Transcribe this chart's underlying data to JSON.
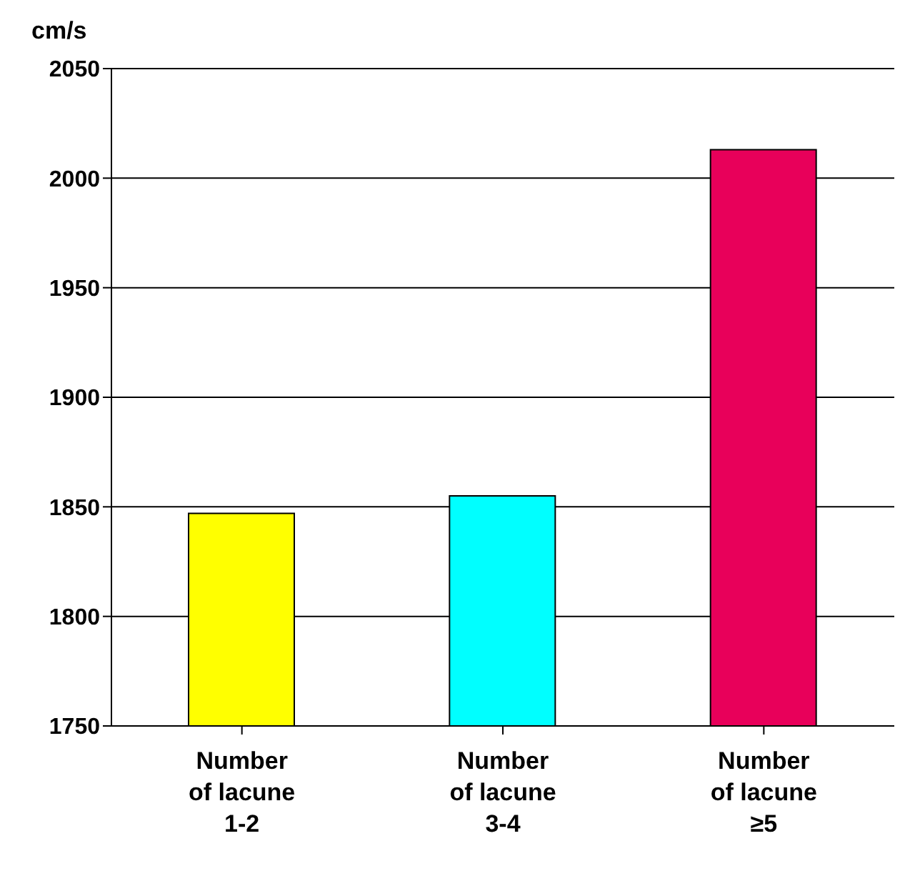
{
  "chart_data": {
    "type": "bar",
    "ylabel": "cm/s",
    "categories": [
      "Number\nof lacune\n1-2",
      "Number\nof lacune\n3-4",
      "Number\nof lacune\n≥5"
    ],
    "values": [
      1847,
      1855,
      2013
    ],
    "colors": [
      "#ffff00",
      "#00ffff",
      "#e8005a"
    ],
    "ylim": [
      1750,
      2050
    ],
    "yticks": [
      1750,
      1800,
      1850,
      1900,
      1950,
      2000,
      2050
    ],
    "grid": "y"
  }
}
